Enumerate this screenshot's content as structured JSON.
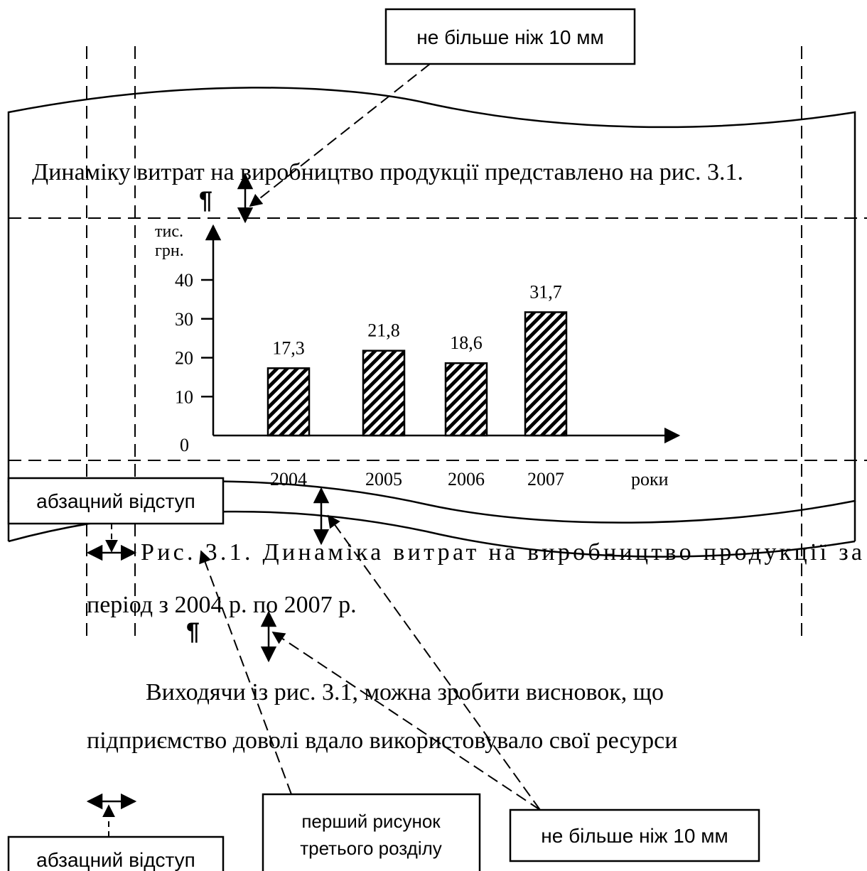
{
  "intro_text": "Динаміку витрат на виробництво продукції представлено на рис. 3.1.",
  "pilcrow": "¶",
  "chart_data": {
    "type": "bar",
    "y_unit_line1": "тис.",
    "y_unit_line2": "грн.",
    "x_axis_label": "роки",
    "categories": [
      "2004",
      "2005",
      "2006",
      "2007"
    ],
    "value_labels": [
      "17,3",
      "21,8",
      "18,6",
      "31,7"
    ],
    "values": [
      17.3,
      21.8,
      18.6,
      31.7
    ],
    "y_ticks": [
      "0",
      "10",
      "20",
      "30",
      "40"
    ],
    "ylim": [
      0,
      40
    ],
    "bar_fill": "diagonal hatch",
    "grid": false
  },
  "caption": {
    "line1": "Рис. 3.1. Динаміка витрат на виробництво продукції за",
    "line2": "період з 2004 р. по 2007 р."
  },
  "conclusion": {
    "line1": "Виходячи із рис. 3.1, можна зробити висновок, що",
    "line2": "підприємство доволі вдало використовувало свої ресурси"
  },
  "callouts": {
    "top_spacing": "не більше ніж 10 мм",
    "indent_upper": "абзацний відступ",
    "indent_lower": "абзацний відступ",
    "first_figure_line1": "перший рисунок",
    "first_figure_line2": "третього розділу",
    "bottom_spacing": "не більше ніж 10 мм"
  }
}
